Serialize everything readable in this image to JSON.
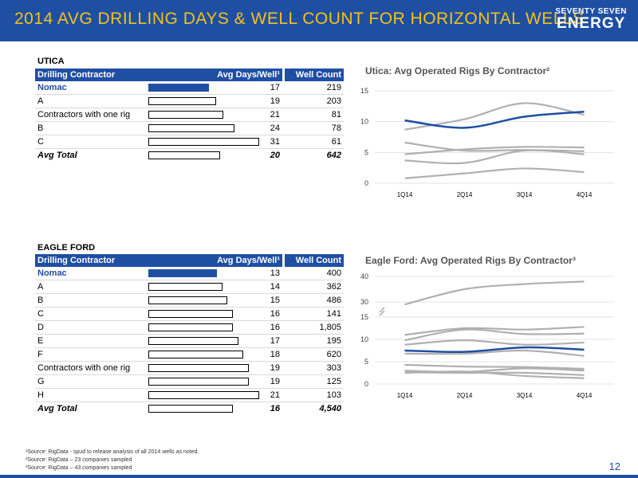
{
  "header": {
    "title": "2014 AVG DRILLING DAYS & WELL COUNT FOR HORIZONTAL WELLS",
    "logo_top": "SEVENTY SEVEN",
    "logo_bottom": "ENERGY"
  },
  "utica": {
    "section": "UTICA",
    "col_contractor": "Drilling Contractor",
    "col_days": "Avg Days/Well¹",
    "col_wells": "Well Count",
    "rows": [
      {
        "name": "Nomac",
        "days": "17",
        "wells": "219"
      },
      {
        "name": "A",
        "days": "19",
        "wells": "203"
      },
      {
        "name": "Contractors with one rig",
        "days": "21",
        "wells": "81"
      },
      {
        "name": "B",
        "days": "24",
        "wells": "78"
      },
      {
        "name": "C",
        "days": "31",
        "wells": "61"
      }
    ],
    "total": {
      "name": "Avg Total",
      "days": "20",
      "wells": "642"
    }
  },
  "eagle_ford": {
    "section": "EAGLE FORD",
    "col_contractor": "Drilling Contractor",
    "col_days": "Avg Days/Well¹",
    "col_wells": "Well Count",
    "rows": [
      {
        "name": "Nomac",
        "days": "13",
        "wells": "400"
      },
      {
        "name": "A",
        "days": "14",
        "wells": "362"
      },
      {
        "name": "B",
        "days": "15",
        "wells": "486"
      },
      {
        "name": "C",
        "days": "16",
        "wells": "141"
      },
      {
        "name": "D",
        "days": "16",
        "wells": "1,805"
      },
      {
        "name": "E",
        "days": "17",
        "wells": "195"
      },
      {
        "name": "F",
        "days": "18",
        "wells": "620"
      },
      {
        "name": "Contractors with one rig",
        "days": "19",
        "wells": "303"
      },
      {
        "name": "G",
        "days": "19",
        "wells": "125"
      },
      {
        "name": "H",
        "days": "21",
        "wells": "103"
      }
    ],
    "total": {
      "name": "Avg Total",
      "days": "16",
      "wells": "4,540"
    }
  },
  "colors": {
    "nomac": "#1f4fa3",
    "other": "#b0b0b0",
    "accent": "#f3c317"
  },
  "chart_data": [
    {
      "type": "line",
      "title": "Utica: Avg Operated Rigs By Contractor²",
      "categories": [
        "1Q14",
        "2Q14",
        "3Q14",
        "4Q14"
      ],
      "yticks": [
        "0",
        "5",
        "10",
        "15"
      ],
      "ylim": [
        0,
        15
      ],
      "grid": true,
      "series": [
        {
          "highlight": true,
          "values": [
            10.2,
            9.0,
            10.8,
            11.6
          ]
        },
        {
          "values": [
            8.7,
            10.4,
            13.0,
            11.1
          ]
        },
        {
          "values": [
            6.6,
            5.3,
            5.4,
            5.2
          ]
        },
        {
          "values": [
            4.7,
            5.5,
            5.9,
            5.8
          ]
        },
        {
          "values": [
            3.7,
            3.3,
            5.3,
            4.7
          ]
        },
        {
          "values": [
            0.8,
            1.6,
            2.4,
            1.8
          ]
        }
      ]
    },
    {
      "type": "line",
      "title": "Eagle Ford: Avg Operated Rigs By Contractor³",
      "categories": [
        "1Q14",
        "2Q14",
        "3Q14",
        "4Q14"
      ],
      "yticks": [
        "0",
        "5",
        "10",
        "15",
        "30",
        "40"
      ],
      "axis_break": [
        15,
        30
      ],
      "ylim": [
        0,
        40
      ],
      "grid": true,
      "series": [
        {
          "highlight": true,
          "values": [
            7.5,
            7.2,
            8.2,
            7.7
          ]
        },
        {
          "values": [
            29,
            35,
            37,
            38
          ]
        },
        {
          "values": [
            11.0,
            12.5,
            12.2,
            12.8
          ]
        },
        {
          "values": [
            9.8,
            12.2,
            11.2,
            11.3
          ]
        },
        {
          "values": [
            8.8,
            9.8,
            8.8,
            9.3
          ]
        },
        {
          "values": [
            6.8,
            6.8,
            7.5,
            6.3
          ]
        },
        {
          "values": [
            4.3,
            3.9,
            3.8,
            3.4
          ]
        },
        {
          "values": [
            3.0,
            2.7,
            3.5,
            3.0
          ]
        },
        {
          "values": [
            2.6,
            2.5,
            2.5,
            2.0
          ]
        },
        {
          "values": [
            2.5,
            2.8,
            1.8,
            1.3
          ]
        }
      ]
    }
  ],
  "footnotes": [
    "¹Source: RigData - spud to release analysis of all 2014 wells as noted.",
    "²Source: RigData – 23 companies sampled",
    "³Source: RigData – 43 companies sampled"
  ],
  "page_number": "12"
}
